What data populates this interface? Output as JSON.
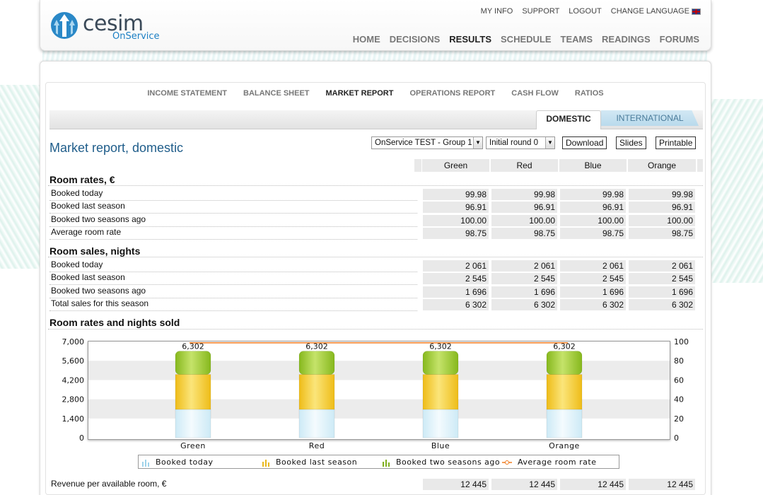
{
  "header": {
    "logo_text": "cesim",
    "logo_sub": "OnService",
    "top_links": [
      "MY INFO",
      "SUPPORT",
      "LOGOUT",
      "CHANGE LANGUAGE"
    ],
    "nav": [
      "HOME",
      "DECISIONS",
      "RESULTS",
      "SCHEDULE",
      "TEAMS",
      "READINGS",
      "FORUMS"
    ],
    "active_nav": "RESULTS"
  },
  "subnav": [
    "INCOME STATEMENT",
    "BALANCE SHEET",
    "MARKET REPORT",
    "OPERATIONS REPORT",
    "CASH FLOW",
    "RATIOS"
  ],
  "active_subnav": "MARKET REPORT",
  "tabs": {
    "domestic": "DOMESTIC",
    "international": "INTERNATIONAL"
  },
  "page_title": "Market report, domestic",
  "controls": {
    "group_select": "OnService TEST - Group 1",
    "round_select": "Initial round 0",
    "download": "Download",
    "slides": "Slides",
    "printable": "Printable"
  },
  "columns": [
    "Green",
    "Red",
    "Blue",
    "Orange"
  ],
  "room_rates": {
    "title": "Room rates, €",
    "rows": [
      {
        "label": "Booked today",
        "values": [
          "99.98",
          "99.98",
          "99.98",
          "99.98"
        ]
      },
      {
        "label": "Booked last season",
        "values": [
          "96.91",
          "96.91",
          "96.91",
          "96.91"
        ]
      },
      {
        "label": "Booked two seasons ago",
        "values": [
          "100.00",
          "100.00",
          "100.00",
          "100.00"
        ]
      },
      {
        "label": "Average room rate",
        "values": [
          "98.75",
          "98.75",
          "98.75",
          "98.75"
        ]
      }
    ]
  },
  "room_sales": {
    "title": "Room sales, nights",
    "rows": [
      {
        "label": "Booked today",
        "values": [
          "2 061",
          "2 061",
          "2 061",
          "2 061"
        ]
      },
      {
        "label": "Booked last season",
        "values": [
          "2 545",
          "2 545",
          "2 545",
          "2 545"
        ]
      },
      {
        "label": "Booked two seasons ago",
        "values": [
          "1 696",
          "1 696",
          "1 696",
          "1 696"
        ]
      },
      {
        "label": "Total sales for this season",
        "values": [
          "6 302",
          "6 302",
          "6 302",
          "6 302"
        ]
      }
    ]
  },
  "chart_section_title": "Room rates and nights sold",
  "chart_data": {
    "type": "bar",
    "stacked": true,
    "categories": [
      "Green",
      "Red",
      "Blue",
      "Orange"
    ],
    "series": [
      {
        "name": "Booked today",
        "values": [
          2061,
          2061,
          2061,
          2061
        ],
        "color": "#d6f0fa"
      },
      {
        "name": "Booked last season",
        "values": [
          2545,
          2545,
          2545,
          2545
        ],
        "color": "#f3cf2e"
      },
      {
        "name": "Booked two seasons ago",
        "values": [
          1696,
          1696,
          1696,
          1696
        ],
        "color": "#9acb2c"
      }
    ],
    "line_series": {
      "name": "Average room rate",
      "values": [
        98.75,
        98.75,
        98.75,
        98.75
      ],
      "color": "#f07a1e",
      "axis": "right"
    },
    "total_labels": [
      "6,302",
      "6,302",
      "6,302",
      "6,302"
    ],
    "y_left_ticks": [
      "7,000",
      "5,600",
      "4,200",
      "2,800",
      "1,400",
      "0"
    ],
    "y_right_ticks": [
      "100",
      "80",
      "60",
      "40",
      "20",
      "0"
    ],
    "ylim_left": [
      0,
      7000
    ],
    "ylim_right": [
      0,
      100
    ]
  },
  "revpar": {
    "label": "Revenue per available room, €",
    "values": [
      "12 445",
      "12 445",
      "12 445",
      "12 445"
    ]
  }
}
